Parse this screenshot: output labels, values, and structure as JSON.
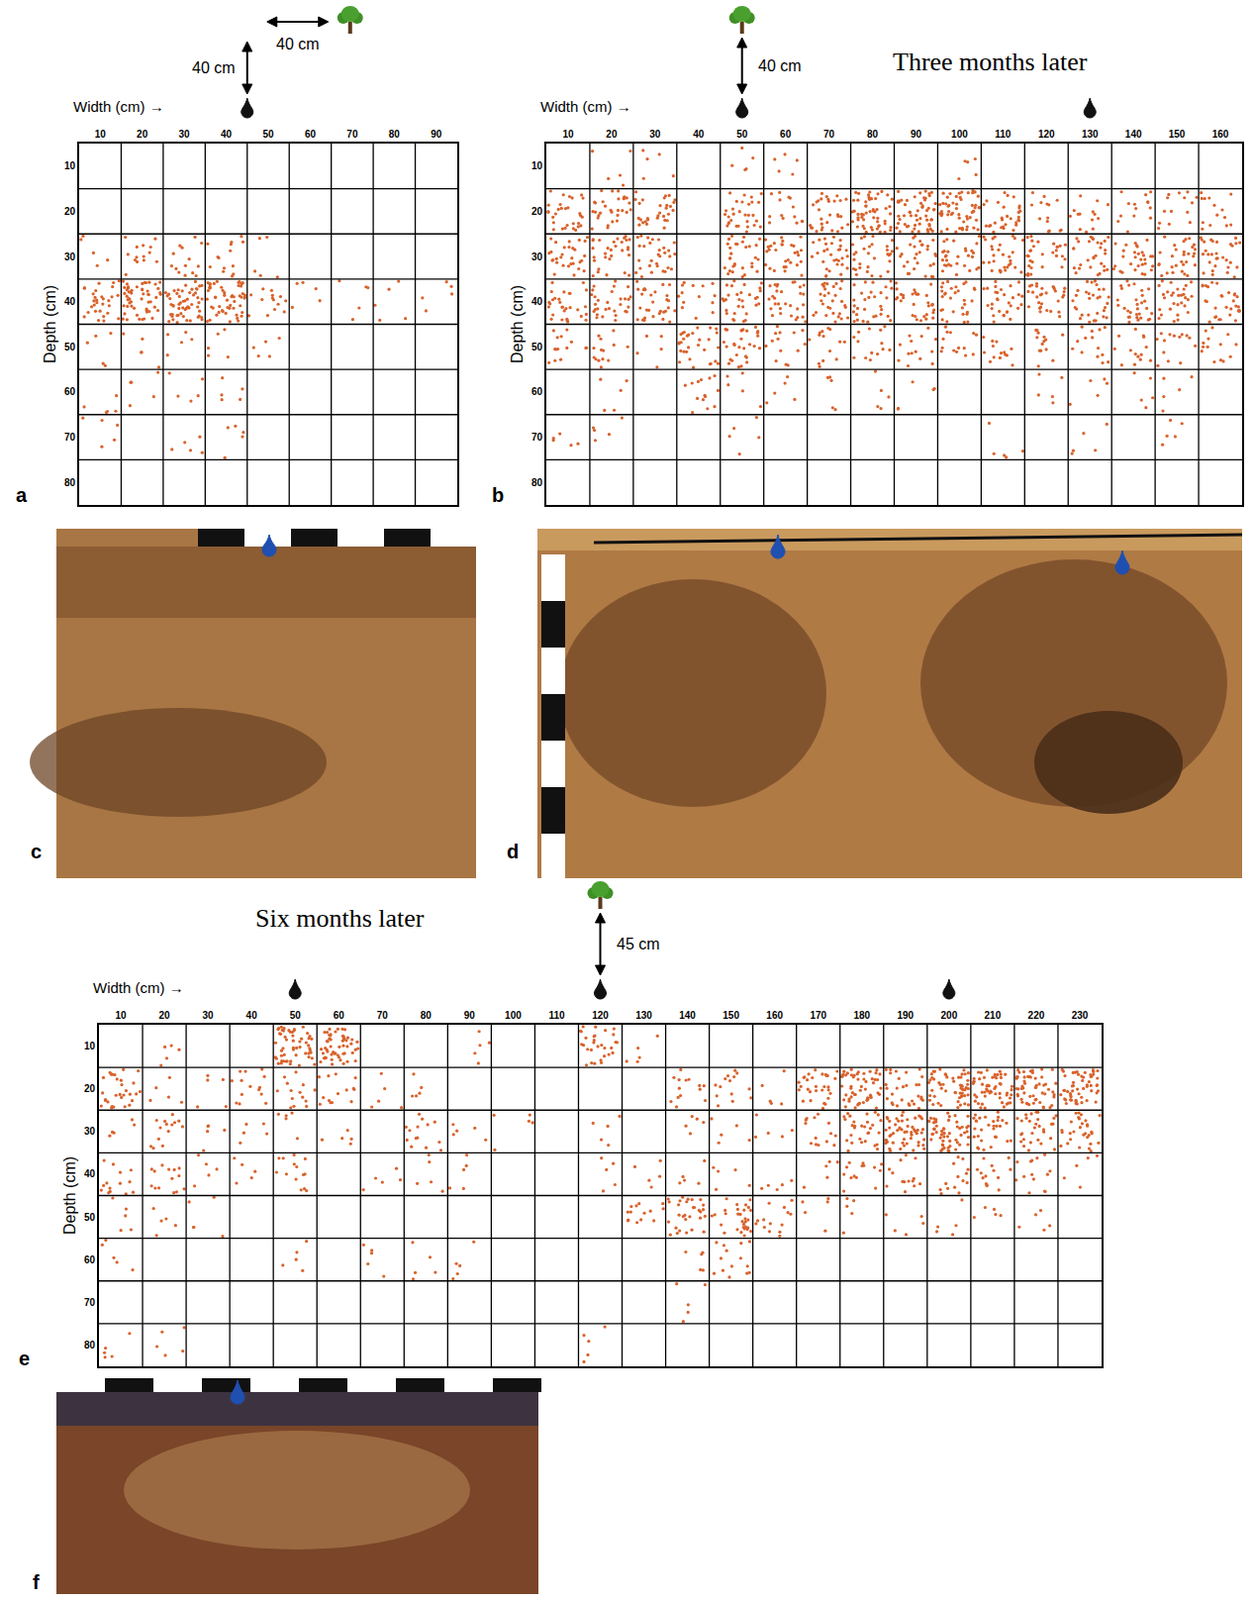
{
  "chart_data": [
    {
      "type": "dot_density",
      "letter": "a",
      "x_label": "Width (cm) →",
      "y_label": "Depth (cm)",
      "xlim": [
        0,
        90
      ],
      "ylim": [
        0,
        80
      ],
      "columns": [
        10,
        20,
        30,
        40,
        50,
        60,
        70,
        80,
        90
      ],
      "rows": [
        10,
        20,
        30,
        40,
        50,
        60,
        70,
        80
      ],
      "color": "#d9622b",
      "emitters_cm": [
        40
      ],
      "vertical_distance": "40 cm",
      "horizontal_distance": "40 cm",
      "cells": [
        [
          0,
          0,
          0,
          0,
          0,
          0,
          0,
          0,
          0
        ],
        [
          0,
          0,
          0,
          0,
          0,
          0,
          0,
          0,
          0
        ],
        [
          1,
          2,
          2,
          2,
          1,
          0,
          0,
          0,
          0
        ],
        [
          3,
          4,
          4,
          4,
          2,
          1,
          1,
          1,
          1
        ],
        [
          1,
          1,
          1,
          1,
          1,
          0,
          0,
          0,
          0
        ],
        [
          1,
          1,
          1,
          1,
          0,
          0,
          0,
          0,
          0
        ],
        [
          1,
          0,
          1,
          1,
          0,
          0,
          0,
          0,
          0
        ],
        [
          0,
          0,
          0,
          0,
          0,
          0,
          0,
          0,
          0
        ]
      ]
    },
    {
      "type": "dot_density",
      "letter": "b",
      "title": "Three months later",
      "x_label": "Width (cm) →",
      "y_label": "Depth (cm)",
      "xlim": [
        0,
        160
      ],
      "ylim": [
        0,
        80
      ],
      "columns": [
        10,
        20,
        30,
        40,
        50,
        60,
        70,
        80,
        90,
        100,
        110,
        120,
        130,
        140,
        150,
        160
      ],
      "rows": [
        10,
        20,
        30,
        40,
        50,
        60,
        70,
        80
      ],
      "color": "#d9622b",
      "emitters_cm": [
        45,
        125
      ],
      "tree_cm": 45,
      "vertical_distance": "40 cm",
      "cells": [
        [
          0,
          1,
          1,
          0,
          1,
          1,
          0,
          0,
          0,
          1,
          0,
          0,
          0,
          0,
          0,
          0
        ],
        [
          3,
          3,
          3,
          0,
          3,
          2,
          3,
          4,
          4,
          4,
          3,
          2,
          2,
          2,
          2,
          2
        ],
        [
          3,
          3,
          3,
          0,
          3,
          3,
          3,
          3,
          3,
          3,
          3,
          3,
          3,
          3,
          3,
          3
        ],
        [
          3,
          3,
          3,
          2,
          3,
          3,
          3,
          3,
          3,
          3,
          3,
          3,
          3,
          3,
          3,
          3
        ],
        [
          2,
          2,
          1,
          3,
          3,
          2,
          2,
          2,
          2,
          2,
          2,
          2,
          2,
          2,
          2,
          2
        ],
        [
          0,
          1,
          0,
          2,
          1,
          1,
          1,
          1,
          1,
          0,
          0,
          1,
          1,
          1,
          1,
          0
        ],
        [
          1,
          1,
          0,
          0,
          1,
          0,
          0,
          0,
          0,
          0,
          1,
          0,
          1,
          0,
          1,
          0
        ],
        [
          0,
          0,
          0,
          0,
          0,
          0,
          0,
          0,
          0,
          0,
          0,
          0,
          0,
          0,
          0,
          0
        ]
      ]
    },
    {
      "type": "dot_density",
      "letter": "e",
      "title": "Six months later",
      "x_label": "Width (cm) →",
      "y_label": "Depth (cm)",
      "xlim": [
        0,
        230
      ],
      "ylim": [
        0,
        80
      ],
      "columns": [
        10,
        20,
        30,
        40,
        50,
        60,
        70,
        80,
        90,
        100,
        110,
        120,
        130,
        140,
        150,
        160,
        170,
        180,
        190,
        200,
        210,
        220,
        230
      ],
      "rows": [
        10,
        20,
        30,
        40,
        50,
        60,
        70,
        80
      ],
      "color": "#d9622b",
      "emitters_cm": [
        45,
        115,
        195
      ],
      "tree_cm": 115,
      "vertical_distance": "45 cm",
      "cells": [
        [
          0,
          1,
          0,
          0,
          4,
          4,
          0,
          0,
          1,
          0,
          0,
          3,
          1,
          0,
          0,
          0,
          0,
          0,
          0,
          0,
          0,
          0,
          0
        ],
        [
          3,
          1,
          1,
          2,
          2,
          2,
          1,
          1,
          0,
          0,
          0,
          0,
          0,
          2,
          2,
          1,
          3,
          4,
          3,
          4,
          4,
          4,
          4
        ],
        [
          1,
          2,
          1,
          1,
          1,
          1,
          0,
          2,
          1,
          1,
          0,
          1,
          0,
          1,
          1,
          1,
          2,
          3,
          4,
          4,
          3,
          3,
          3
        ],
        [
          2,
          2,
          1,
          1,
          2,
          0,
          1,
          1,
          1,
          0,
          0,
          1,
          1,
          1,
          1,
          1,
          1,
          2,
          2,
          2,
          2,
          2,
          1
        ],
        [
          1,
          1,
          1,
          0,
          0,
          0,
          0,
          0,
          0,
          0,
          0,
          0,
          2,
          3,
          3,
          2,
          1,
          1,
          1,
          1,
          1,
          1,
          0
        ],
        [
          1,
          0,
          0,
          0,
          1,
          0,
          1,
          1,
          1,
          0,
          0,
          0,
          0,
          1,
          2,
          0,
          0,
          0,
          0,
          0,
          0,
          0,
          0
        ],
        [
          0,
          0,
          0,
          0,
          0,
          0,
          0,
          0,
          0,
          0,
          0,
          0,
          0,
          1,
          0,
          0,
          0,
          0,
          0,
          0,
          0,
          0,
          0
        ],
        [
          1,
          1,
          0,
          0,
          0,
          0,
          0,
          0,
          0,
          0,
          0,
          1,
          0,
          0,
          0,
          0,
          0,
          0,
          0,
          0,
          0,
          0,
          0
        ]
      ]
    }
  ],
  "photos": [
    {
      "letter": "c"
    },
    {
      "letter": "d"
    },
    {
      "letter": "f"
    }
  ]
}
